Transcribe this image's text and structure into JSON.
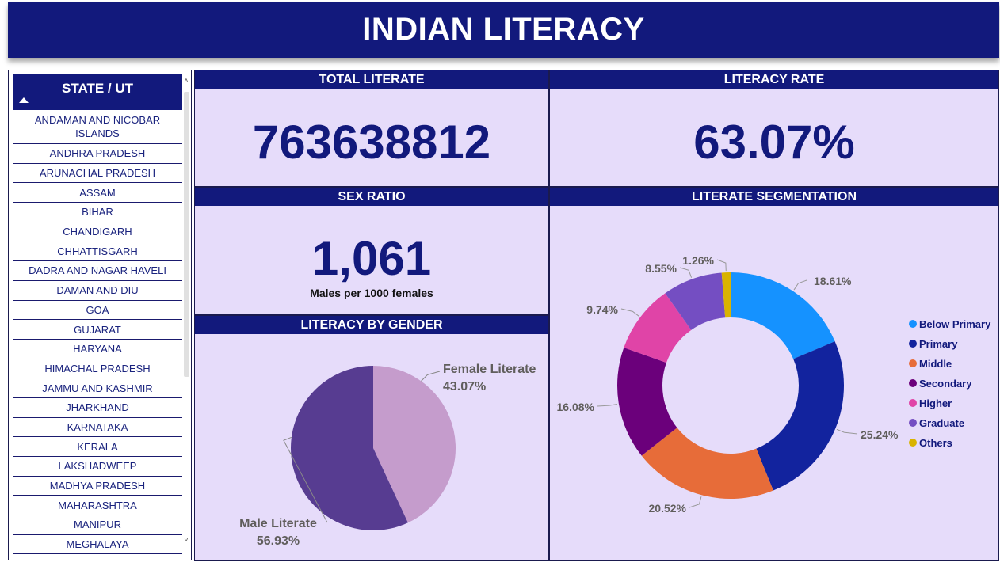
{
  "title": "INDIAN LITERACY",
  "slicer": {
    "header": "STATE / UT",
    "items": [
      "ANDAMAN AND NICOBAR ISLANDS",
      "ANDHRA PRADESH",
      "ARUNACHAL PRADESH",
      "ASSAM",
      "BIHAR",
      "CHANDIGARH",
      "CHHATTISGARH",
      "DADRA AND NAGAR HAVELI",
      "DAMAN AND DIU",
      "GOA",
      "GUJARAT",
      "HARYANA",
      "HIMACHAL PRADESH",
      "JAMMU AND KASHMIR",
      "JHARKHAND",
      "KARNATAKA",
      "KERALA",
      "LAKSHADWEEP",
      "MADHYA PRADESH",
      "MAHARASHTRA",
      "MANIPUR",
      "MEGHALAYA"
    ]
  },
  "cards": {
    "total_literate": {
      "header": "TOTAL LITERATE",
      "value": "763638812"
    },
    "literacy_rate": {
      "header": "LITERACY RATE",
      "value": "63.07%"
    },
    "sex_ratio": {
      "header": "SEX RATIO",
      "value": "1,061",
      "subtitle": "Males per 1000 females"
    },
    "gender": {
      "header": "LITERACY BY GENDER"
    },
    "segmentation": {
      "header": "LITERATE SEGMENTATION"
    }
  },
  "colors": {
    "header_bg": "#12197c",
    "card_bg": "#e6dcfa",
    "kpi_text": "#12197c"
  },
  "chart_data": [
    {
      "type": "pie",
      "slices": [
        {
          "label": "Female Literate",
          "value": 43.07,
          "display": "43.07%",
          "color": "#c59ccc"
        },
        {
          "label": "Male Literate",
          "value": 56.93,
          "display": "56.93%",
          "color": "#573c91"
        }
      ]
    },
    {
      "type": "pie",
      "donut": true,
      "legend_position": "right",
      "slices": [
        {
          "label": "Below Primary",
          "value": 18.61,
          "display": "18.61%",
          "color": "#1592ff"
        },
        {
          "label": "Primary",
          "value": 25.24,
          "display": "25.24%",
          "color": "#12239e"
        },
        {
          "label": "Middle",
          "value": 20.52,
          "display": "20.52%",
          "color": "#e76c39"
        },
        {
          "label": "Secondary",
          "value": 16.08,
          "display": "16.08%",
          "color": "#6b007b"
        },
        {
          "label": "Higher",
          "value": 9.74,
          "display": "9.74%",
          "color": "#e044a7"
        },
        {
          "label": "Graduate",
          "value": 8.55,
          "display": "8.55%",
          "color": "#744ec2"
        },
        {
          "label": "Others",
          "value": 1.26,
          "display": "1.26%",
          "color": "#d9b300"
        }
      ]
    }
  ]
}
